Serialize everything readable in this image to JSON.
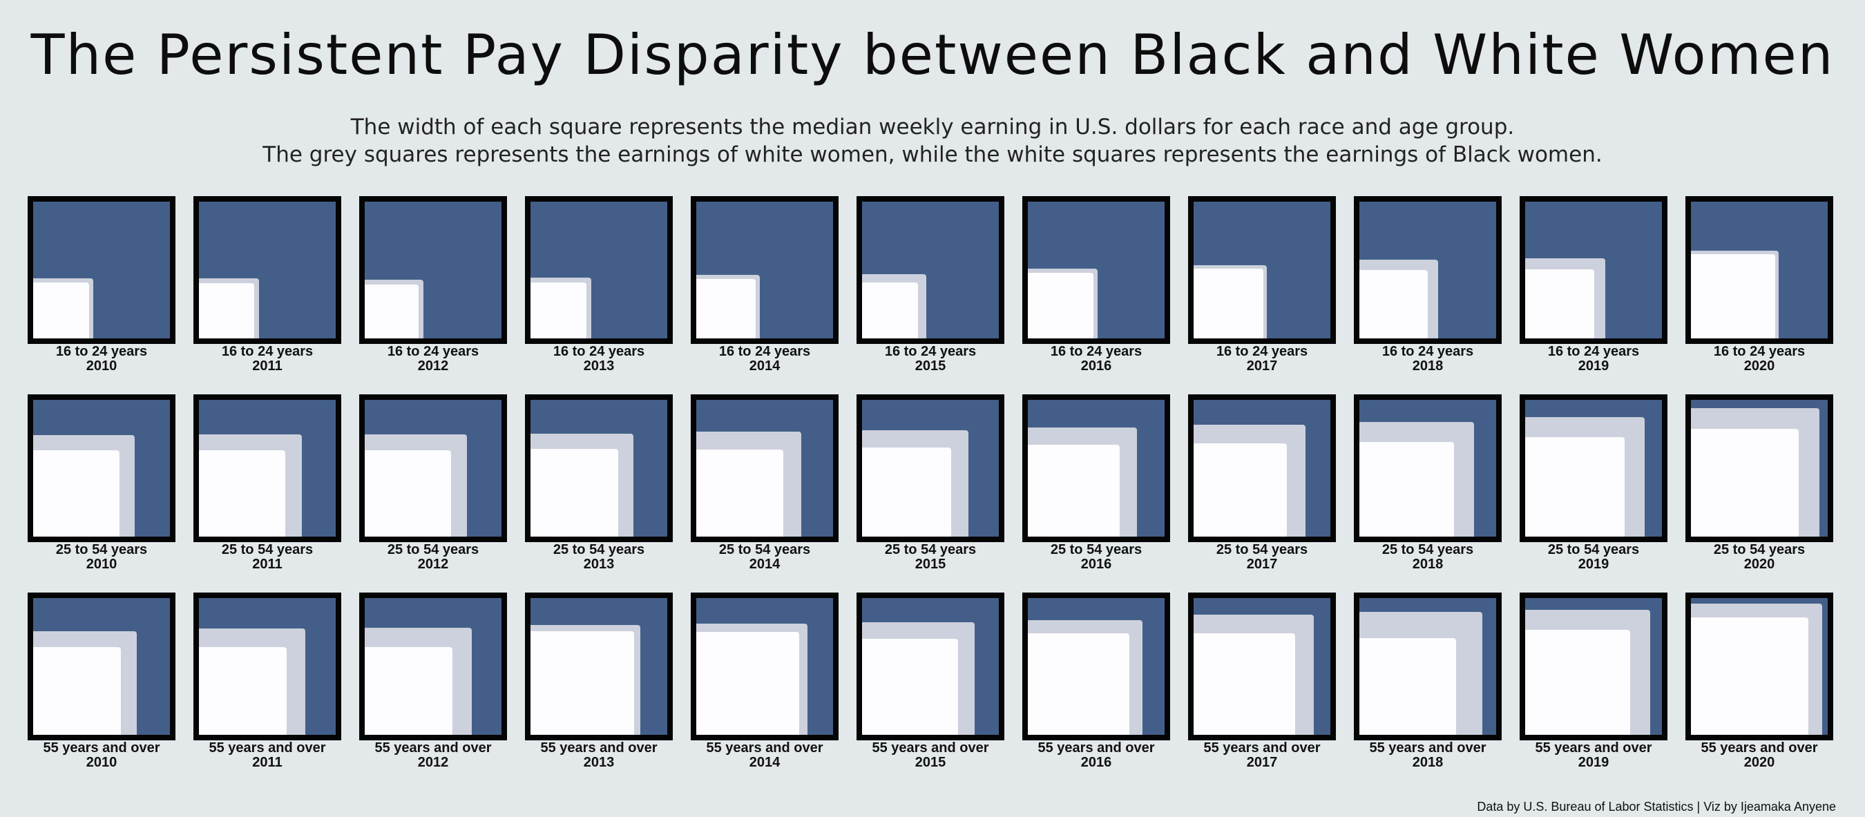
{
  "header": {
    "title": "The Persistent Pay Disparity between Black and White Women",
    "subtitle_line1": "The width of each square represents the median weekly earning in U.S. dollars for each race and age group.",
    "subtitle_line2": "The grey squares represents the earnings of white women, while the white squares represents the earnings of Black women."
  },
  "credit": "Data by U.S. Bureau of Labor Statistics | Viz by Ijeamaka Anyene",
  "colors": {
    "background": "#e3e8ea",
    "panel_fill": "#435f89",
    "panel_border": "#050505",
    "white_women": "#cdd1dd",
    "black_women": "#fdfcfe"
  },
  "chart_data": {
    "type": "proportional-square-grid",
    "unit": "median weekly earnings (USD)",
    "years": [
      "2010",
      "2011",
      "2012",
      "2013",
      "2014",
      "2015",
      "2016",
      "2017",
      "2018",
      "2019",
      "2020"
    ],
    "scale_max": 1000,
    "series": [
      {
        "name": "White women"
      },
      {
        "name": "Black women"
      }
    ],
    "groups": [
      {
        "age_group": "16 to 24 years",
        "white_women": [
          440,
          438,
          431,
          442,
          464,
          470,
          512,
          533,
          575,
          587,
          642
        ],
        "black_women": [
          410,
          403,
          395,
          408,
          435,
          408,
          482,
          512,
          500,
          507,
          617
        ]
      },
      {
        "age_group": "25 to 54 years",
        "white_women": [
          742,
          750,
          748,
          755,
          770,
          780,
          800,
          818,
          837,
          872,
          940
        ],
        "black_women": [
          630,
          632,
          630,
          640,
          635,
          650,
          670,
          682,
          690,
          729,
          790
        ]
      },
      {
        "age_group": "55 years and over",
        "white_women": [
          756,
          780,
          785,
          805,
          815,
          825,
          840,
          880,
          900,
          912,
          960
        ],
        "black_women": [
          640,
          643,
          640,
          760,
          751,
          703,
          740,
          740,
          705,
          770,
          858
        ]
      }
    ]
  }
}
